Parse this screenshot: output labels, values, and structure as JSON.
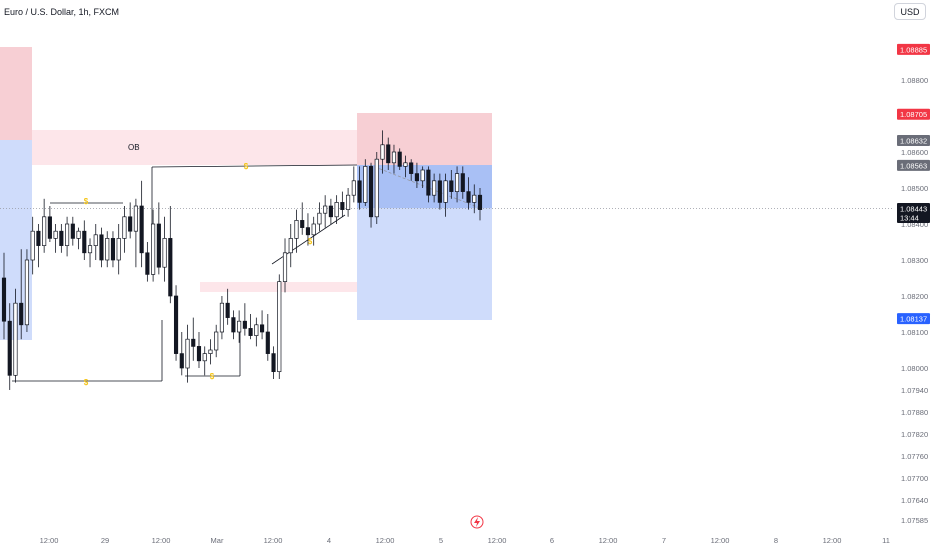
{
  "header": {
    "symbol_title": "Euro / U.S. Dollar, 1h, FXCM",
    "currency": "USD"
  },
  "colors": {
    "up": "#131722",
    "down": "#131722",
    "red_zone": "#f7cfd4",
    "pink_zone": "#fde6ea",
    "blue_zone": "#cfdcfb",
    "blue_dark": "#a9c0f5",
    "label_red": "#f23645",
    "label_gray": "#6a6d78",
    "label_dark": "#131722",
    "label_blue": "#2962ff",
    "axis_text": "#6a6d78",
    "dollar": "#f5c518"
  },
  "annotations": {
    "ob_label": "OB",
    "liquidity_marker": "$",
    "tv_logo": "lightning-icon"
  },
  "chart_data": {
    "type": "candlestick",
    "title": "Euro / U.S. Dollar, 1h, FXCM",
    "ylim": [
      1.075,
      1.0895
    ],
    "y_ticks": [
      "1.08800",
      "1.08600",
      "1.08500",
      "1.08400",
      "1.08300",
      "1.08200",
      "1.08100",
      "1.08000",
      "1.07940",
      "1.07880",
      "1.07820",
      "1.07760",
      "1.07700",
      "1.07640",
      "1.07585"
    ],
    "x_ticks": [
      "12:00",
      "29",
      "12:00",
      "Mar",
      "12:00",
      "4",
      "12:00",
      "5",
      "12:00",
      "6",
      "12:00",
      "7",
      "12:00",
      "8",
      "12:00",
      "11"
    ],
    "price_labels": [
      {
        "text": "1.08885",
        "style": "red"
      },
      {
        "text": "1.08705",
        "style": "red"
      },
      {
        "text": "1.08632",
        "style": "gray"
      },
      {
        "text": "1.08563",
        "style": "gray"
      },
      {
        "text": "1.08443",
        "sub": "13:44",
        "style": "dark"
      },
      {
        "text": "1.08137",
        "style": "blue"
      }
    ],
    "current_price": 1.08443,
    "candles": [
      [
        1.0825,
        1.0832,
        1.0808,
        1.0813
      ],
      [
        1.0813,
        1.0818,
        1.0794,
        1.0798
      ],
      [
        1.0798,
        1.0822,
        1.0796,
        1.0818
      ],
      [
        1.0818,
        1.0833,
        1.0808,
        1.0812
      ],
      [
        1.0812,
        1.0833,
        1.081,
        1.083
      ],
      [
        1.083,
        1.0842,
        1.0826,
        1.0838
      ],
      [
        1.0838,
        1.084,
        1.0828,
        1.0834
      ],
      [
        1.0834,
        1.0847,
        1.0832,
        1.0842
      ],
      [
        1.0842,
        1.0845,
        1.0835,
        1.0836
      ],
      [
        1.0836,
        1.084,
        1.0832,
        1.0838
      ],
      [
        1.0838,
        1.084,
        1.0832,
        1.0834
      ],
      [
        1.0834,
        1.0842,
        1.0831,
        1.084
      ],
      [
        1.084,
        1.0842,
        1.0834,
        1.0836
      ],
      [
        1.0836,
        1.0839,
        1.0833,
        1.0838
      ],
      [
        1.0838,
        1.0841,
        1.083,
        1.0832
      ],
      [
        1.0832,
        1.0836,
        1.0828,
        1.0834
      ],
      [
        1.0834,
        1.084,
        1.083,
        1.0837
      ],
      [
        1.0837,
        1.0839,
        1.0828,
        1.083
      ],
      [
        1.083,
        1.0838,
        1.0828,
        1.0836
      ],
      [
        1.0836,
        1.0838,
        1.0828,
        1.083
      ],
      [
        1.083,
        1.084,
        1.0826,
        1.0836
      ],
      [
        1.0836,
        1.0845,
        1.0832,
        1.0842
      ],
      [
        1.0842,
        1.0846,
        1.0836,
        1.0838
      ],
      [
        1.0838,
        1.0847,
        1.0828,
        1.0845
      ],
      [
        1.0845,
        1.0852,
        1.0828,
        1.0832
      ],
      [
        1.0832,
        1.0835,
        1.0824,
        1.0826
      ],
      [
        1.0826,
        1.0844,
        1.0824,
        1.084
      ],
      [
        1.084,
        1.0846,
        1.0826,
        1.0828
      ],
      [
        1.0828,
        1.0842,
        1.0824,
        1.0836
      ],
      [
        1.0836,
        1.0845,
        1.0818,
        1.082
      ],
      [
        1.082,
        1.0823,
        1.0802,
        1.0804
      ],
      [
        1.0804,
        1.081,
        1.0798,
        1.08
      ],
      [
        1.08,
        1.0812,
        1.0796,
        1.0808
      ],
      [
        1.0808,
        1.0814,
        1.0802,
        1.0806
      ],
      [
        1.0806,
        1.081,
        1.08,
        1.0802
      ],
      [
        1.0802,
        1.0806,
        1.0798,
        1.0804
      ],
      [
        1.0804,
        1.0808,
        1.0801,
        1.0805
      ],
      [
        1.0805,
        1.0812,
        1.0803,
        1.081
      ],
      [
        1.081,
        1.082,
        1.0808,
        1.0818
      ],
      [
        1.0818,
        1.0822,
        1.0812,
        1.0814
      ],
      [
        1.0814,
        1.0816,
        1.0808,
        1.081
      ],
      [
        1.081,
        1.0816,
        1.0807,
        1.0813
      ],
      [
        1.0813,
        1.0818,
        1.0809,
        1.0811
      ],
      [
        1.0811,
        1.0815,
        1.0808,
        1.0809
      ],
      [
        1.0809,
        1.0814,
        1.0806,
        1.0812
      ],
      [
        1.0812,
        1.0816,
        1.0808,
        1.081
      ],
      [
        1.081,
        1.0815,
        1.0802,
        1.0804
      ],
      [
        1.0804,
        1.0806,
        1.0797,
        1.0799
      ],
      [
        1.0799,
        1.0826,
        1.0797,
        1.0824
      ],
      [
        1.0824,
        1.0836,
        1.0821,
        1.0832
      ],
      [
        1.0832,
        1.084,
        1.0828,
        1.0836
      ],
      [
        1.0836,
        1.0844,
        1.0832,
        1.0841
      ],
      [
        1.0841,
        1.0846,
        1.0837,
        1.0839
      ],
      [
        1.0839,
        1.0843,
        1.0834,
        1.0837
      ],
      [
        1.0837,
        1.0842,
        1.0834,
        1.084
      ],
      [
        1.084,
        1.0846,
        1.0838,
        1.0843
      ],
      [
        1.0843,
        1.0848,
        1.0839,
        1.0845
      ],
      [
        1.0845,
        1.0847,
        1.084,
        1.0842
      ],
      [
        1.0842,
        1.0848,
        1.084,
        1.0846
      ],
      [
        1.0846,
        1.0849,
        1.0842,
        1.0844
      ],
      [
        1.0844,
        1.085,
        1.0842,
        1.0848
      ],
      [
        1.0848,
        1.0856,
        1.0846,
        1.0852
      ],
      [
        1.0852,
        1.0856,
        1.0844,
        1.0846
      ],
      [
        1.0846,
        1.0858,
        1.0845,
        1.0856
      ],
      [
        1.0856,
        1.0857,
        1.0839,
        1.0842
      ],
      [
        1.0842,
        1.086,
        1.084,
        1.0858
      ],
      [
        1.0858,
        1.0866,
        1.0854,
        1.0862
      ],
      [
        1.0862,
        1.0864,
        1.0855,
        1.0857
      ],
      [
        1.0857,
        1.0862,
        1.0854,
        1.086
      ],
      [
        1.086,
        1.0861,
        1.0855,
        1.0856
      ],
      [
        1.0856,
        1.0859,
        1.0853,
        1.0857
      ],
      [
        1.0857,
        1.0858,
        1.0852,
        1.0854
      ],
      [
        1.0854,
        1.0857,
        1.085,
        1.0852
      ],
      [
        1.0852,
        1.0856,
        1.085,
        1.0855
      ],
      [
        1.0855,
        1.0856,
        1.0846,
        1.0848
      ],
      [
        1.0848,
        1.0854,
        1.0846,
        1.0852
      ],
      [
        1.0852,
        1.0854,
        1.0844,
        1.0846
      ],
      [
        1.0846,
        1.0854,
        1.0842,
        1.0852
      ],
      [
        1.0852,
        1.0855,
        1.0847,
        1.0849
      ],
      [
        1.0849,
        1.0856,
        1.0846,
        1.0854
      ],
      [
        1.0854,
        1.0856,
        1.0847,
        1.0849
      ],
      [
        1.0849,
        1.0853,
        1.0844,
        1.0846
      ],
      [
        1.0846,
        1.0851,
        1.0843,
        1.0848
      ],
      [
        1.0848,
        1.085,
        1.0841,
        1.0844
      ]
    ],
    "zones": [
      {
        "type": "ob",
        "label": "OB"
      },
      {
        "type": "position",
        "entry": 1.08563,
        "target": 1.08705,
        "stop": 1.08137
      }
    ]
  }
}
